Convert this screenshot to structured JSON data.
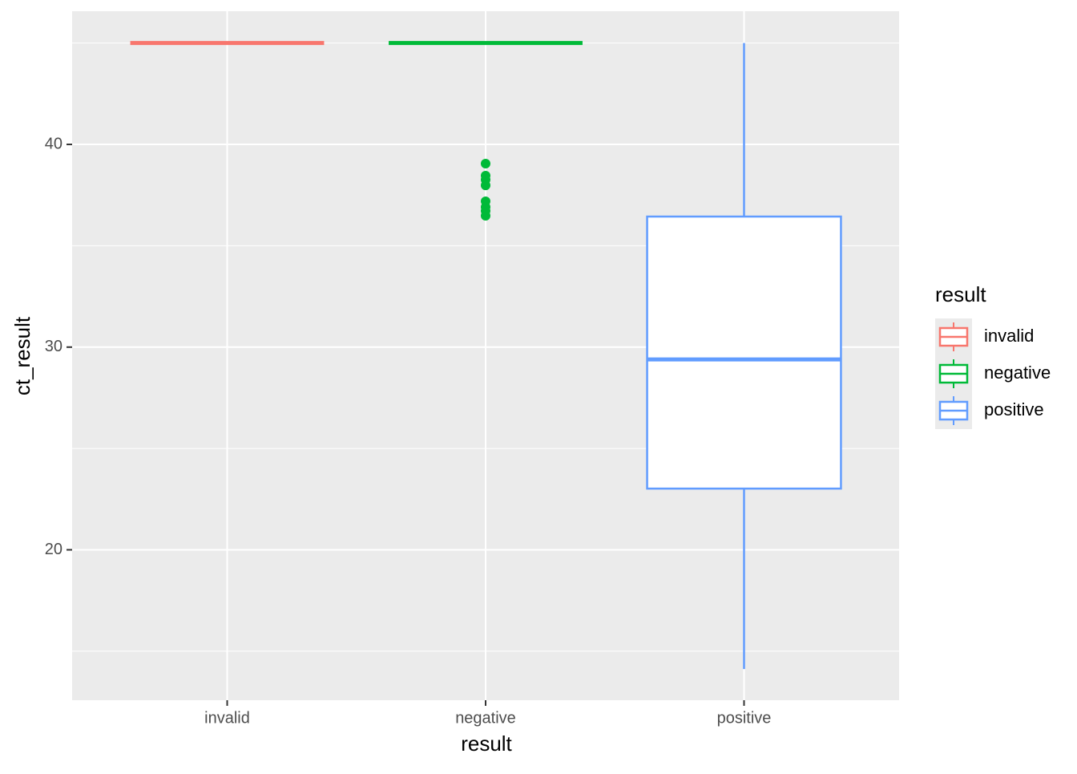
{
  "chart_data": {
    "type": "box",
    "xlabel": "result",
    "ylabel": "ct_result",
    "categories": [
      "invalid",
      "negative",
      "positive"
    ],
    "legend_title": "result",
    "legend_position": "right",
    "ylim": [
      12.58,
      46.57
    ],
    "yticks": [
      20,
      30,
      40
    ],
    "minor_yticks": [
      15,
      25,
      35,
      45
    ],
    "grid": true,
    "series": [
      {
        "name": "invalid",
        "color": "#F8766D",
        "min": 45,
        "q1": 45,
        "median": 45,
        "q3": 45,
        "max": 45,
        "outliers": []
      },
      {
        "name": "negative",
        "color": "#00BA38",
        "min": 45,
        "q1": 45,
        "median": 45,
        "q3": 45,
        "max": 45,
        "outliers": [
          39.05,
          38.46,
          38.26,
          37.98,
          37.19,
          36.91,
          36.72,
          36.48
        ]
      },
      {
        "name": "positive",
        "color": "#619CFF",
        "min": 14.12,
        "q1": 23.02,
        "median": 29.39,
        "q3": 36.44,
        "max": 45,
        "outliers": []
      }
    ]
  }
}
